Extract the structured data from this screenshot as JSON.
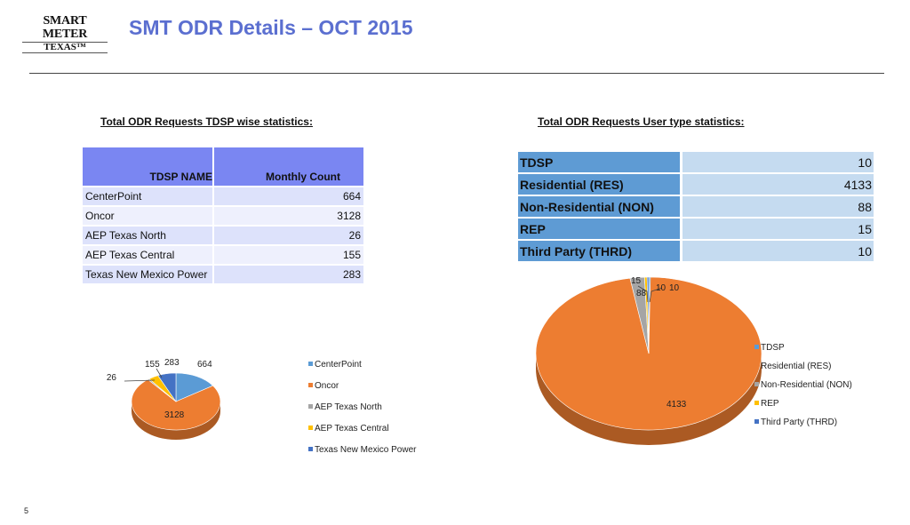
{
  "logo": {
    "line1": "SMART METER",
    "line2": "TEXAS™"
  },
  "title": "SMT ODR Details – OCT 2015",
  "page_number": "5",
  "left_section": {
    "heading": "Total ODR Requests TDSP wise statistics:",
    "columns": [
      "TDSP NAME",
      "Monthly Count"
    ],
    "rows": [
      {
        "name": "CenterPoint",
        "count": "664"
      },
      {
        "name": "Oncor",
        "count": "3128"
      },
      {
        "name": "AEP Texas North",
        "count": "26"
      },
      {
        "name": "AEP Texas Central",
        "count": "155"
      },
      {
        "name": "Texas New Mexico Power",
        "count": "283"
      }
    ]
  },
  "right_section": {
    "heading": "Total ODR Requests User type statistics:",
    "rows": [
      {
        "name": "TDSP",
        "count": "10"
      },
      {
        "name": "Residential (RES)",
        "count": "4133"
      },
      {
        "name": "Non-Residential (NON)",
        "count": "88"
      },
      {
        "name": "REP",
        "count": "15"
      },
      {
        "name": "Third Party (THRD)",
        "count": "10"
      }
    ]
  },
  "chart_data": [
    {
      "type": "pie",
      "title": "",
      "categories": [
        "CenterPoint",
        "Oncor",
        "AEP Texas North",
        "AEP Texas Central",
        "Texas New Mexico Power"
      ],
      "values": [
        664,
        3128,
        26,
        155,
        283
      ],
      "labels": [
        "664",
        "3128",
        "26",
        "155",
        "283"
      ],
      "colors": [
        "#5b9bd5",
        "#ed7d31",
        "#a5a5a5",
        "#ffc000",
        "#4472c4"
      ],
      "legend_position": "right"
    },
    {
      "type": "pie",
      "title": "",
      "categories": [
        "TDSP",
        "Residential (RES)",
        "Non-Residential (NON)",
        "REP",
        "Third Party (THRD)"
      ],
      "values": [
        10,
        4133,
        88,
        15,
        10
      ],
      "labels": [
        "10",
        "4133",
        "88",
        "15",
        "10"
      ],
      "colors": [
        "#5b9bd5",
        "#ed7d31",
        "#a5a5a5",
        "#ffc000",
        "#4472c4"
      ],
      "legend_position": "right"
    }
  ]
}
